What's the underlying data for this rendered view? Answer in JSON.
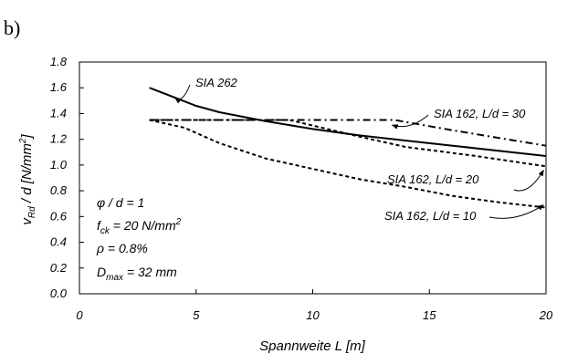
{
  "panel_label": "b)",
  "chart_data": {
    "type": "line",
    "title": "",
    "xlabel": "Spannweite L [m]",
    "ylabel": "v_Rd / d [N/mm^2]",
    "ylabel_parts": {
      "v": "v",
      "sub": "Rd",
      "rest": " / d  [N/mm",
      "sup": "2",
      "close": "]"
    },
    "xlim": [
      0,
      20
    ],
    "ylim": [
      0,
      1.8
    ],
    "xticks": [
      "0",
      "5",
      "10",
      "15",
      "20"
    ],
    "yticks": [
      "0.0",
      "0.2",
      "0.4",
      "0.6",
      "0.8",
      "1.0",
      "1.2",
      "1.4",
      "1.6",
      "1.8"
    ],
    "grid": false,
    "series": [
      {
        "name": "SIA 262",
        "style": "solid",
        "points": [
          [
            3,
            1.6
          ],
          [
            4,
            1.53
          ],
          [
            5,
            1.46
          ],
          [
            6,
            1.41
          ],
          [
            8,
            1.34
          ],
          [
            10,
            1.28
          ],
          [
            12,
            1.23
          ],
          [
            14,
            1.19
          ],
          [
            16,
            1.15
          ],
          [
            18,
            1.11
          ],
          [
            20,
            1.07
          ]
        ]
      },
      {
        "name": "SIA 162, L/d = 30",
        "style": "dash-dot",
        "points": [
          [
            3,
            1.35
          ],
          [
            13.5,
            1.35
          ],
          [
            16,
            1.27
          ],
          [
            18,
            1.21
          ],
          [
            20,
            1.15
          ]
        ]
      },
      {
        "name": "SIA 162, L/d = 20",
        "style": "dashed",
        "points": [
          [
            3,
            1.35
          ],
          [
            9,
            1.35
          ],
          [
            12,
            1.22
          ],
          [
            14,
            1.14
          ],
          [
            17,
            1.07
          ],
          [
            20,
            0.99
          ]
        ]
      },
      {
        "name": "SIA 162, L/d = 10",
        "style": "dashed",
        "points": [
          [
            3,
            1.35
          ],
          [
            4.5,
            1.29
          ],
          [
            6,
            1.17
          ],
          [
            8,
            1.05
          ],
          [
            10,
            0.97
          ],
          [
            12,
            0.89
          ],
          [
            14,
            0.83
          ],
          [
            16,
            0.76
          ],
          [
            18,
            0.71
          ],
          [
            20,
            0.67
          ]
        ]
      }
    ],
    "annotations": [
      {
        "text": "SIA 262",
        "points_to": [
          4.1,
          1.52
        ]
      },
      {
        "text": "SIA 162, L/d = 30",
        "points_to": [
          13.4,
          1.31
        ]
      },
      {
        "text": "SIA 162, L/d = 20",
        "points_to": [
          19.9,
          0.96
        ]
      },
      {
        "text": "SIA 162, L/d = 10",
        "points_to": [
          19.9,
          0.69
        ]
      }
    ],
    "parameters": [
      {
        "main": "φ / d = 1",
        "sub": "",
        "tail": "",
        "sup": ""
      },
      {
        "main": "f",
        "sub": "ck",
        "tail": " = 20 N/mm",
        "sup": "2"
      },
      {
        "main": "ρ = 0.8%",
        "sub": "",
        "tail": "",
        "sup": ""
      },
      {
        "main": "D",
        "sub": "max",
        "tail": " = 32 mm",
        "sup": ""
      }
    ]
  }
}
